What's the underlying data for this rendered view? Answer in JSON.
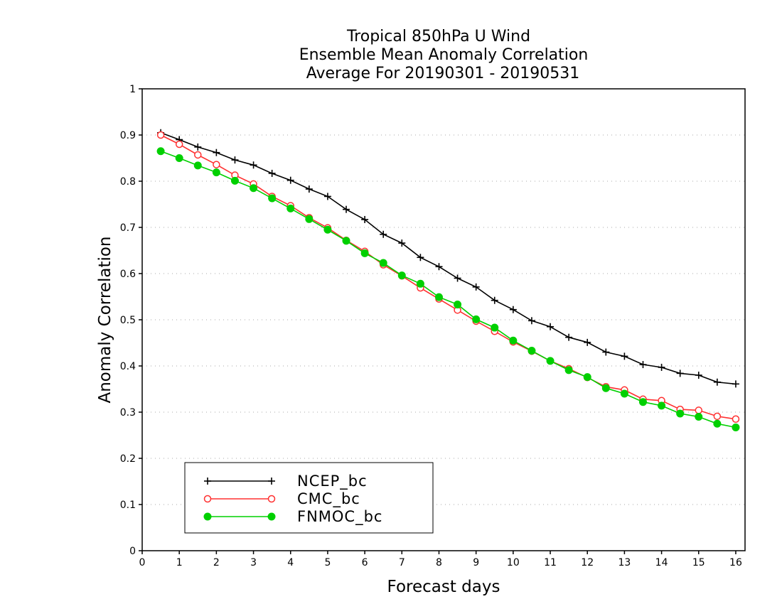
{
  "chart_data": {
    "type": "line",
    "title": [
      "Tropical 850hPa U Wind",
      "Ensemble Mean Anomaly Correlation",
      "Average For 20190301 - 20190531"
    ],
    "xlabel": "Forecast days",
    "ylabel": "Anomaly Correlation",
    "xlim": [
      0,
      16.25
    ],
    "ylim": [
      0,
      1
    ],
    "xticks": [
      0,
      1,
      2,
      3,
      4,
      5,
      6,
      7,
      8,
      9,
      10,
      11,
      12,
      13,
      14,
      15,
      16
    ],
    "xtick_labels": [
      "0",
      "1",
      "2",
      "3",
      "4",
      "5",
      "6",
      "7",
      "8",
      "9",
      "10",
      "11",
      "12",
      "13",
      "14",
      "15",
      "16"
    ],
    "yticks": [
      0,
      0.1,
      0.2,
      0.3,
      0.4,
      0.5,
      0.6,
      0.7,
      0.8,
      0.9,
      1
    ],
    "ytick_labels": [
      "0",
      "0.1",
      "0.2",
      "0.3",
      "0.4",
      "0.5",
      "0.6",
      "0.7",
      "0.8",
      "0.9",
      "1"
    ],
    "grid": true,
    "legend_position": "bottom-left",
    "x": [
      0.5,
      1,
      1.5,
      2,
      2.5,
      3,
      3.5,
      4,
      4.5,
      5,
      5.5,
      6,
      6.5,
      7,
      7.5,
      8,
      8.5,
      9,
      9.5,
      10,
      10.5,
      11,
      11.5,
      12,
      12.5,
      13,
      13.5,
      14,
      14.5,
      15,
      15.5,
      16
    ],
    "series": [
      {
        "name": "NCEP_bc",
        "color": "#000000",
        "marker": "plus",
        "values": [
          0.905,
          0.89,
          0.874,
          0.862,
          0.846,
          0.835,
          0.817,
          0.802,
          0.783,
          0.767,
          0.739,
          0.717,
          0.685,
          0.666,
          0.635,
          0.615,
          0.59,
          0.571,
          0.542,
          0.522,
          0.498,
          0.485,
          0.462,
          0.451,
          0.43,
          0.421,
          0.403,
          0.397,
          0.384,
          0.38,
          0.365,
          0.361
        ]
      },
      {
        "name": "CMC_bc",
        "color": "#ff3030",
        "marker": "open-circle",
        "values": [
          0.9,
          0.88,
          0.857,
          0.836,
          0.813,
          0.794,
          0.767,
          0.747,
          0.721,
          0.699,
          0.672,
          0.648,
          0.619,
          0.595,
          0.569,
          0.545,
          0.521,
          0.497,
          0.475,
          0.452,
          0.432,
          0.411,
          0.394,
          0.375,
          0.355,
          0.348,
          0.328,
          0.325,
          0.306,
          0.304,
          0.291,
          0.285
        ]
      },
      {
        "name": "FNMOC_bc",
        "color": "#00d000",
        "marker": "filled-circle",
        "values": [
          0.865,
          0.85,
          0.834,
          0.819,
          0.801,
          0.785,
          0.763,
          0.741,
          0.718,
          0.695,
          0.671,
          0.644,
          0.623,
          0.596,
          0.578,
          0.549,
          0.533,
          0.501,
          0.483,
          0.455,
          0.433,
          0.411,
          0.391,
          0.376,
          0.352,
          0.34,
          0.322,
          0.314,
          0.297,
          0.29,
          0.275,
          0.267
        ]
      }
    ]
  }
}
